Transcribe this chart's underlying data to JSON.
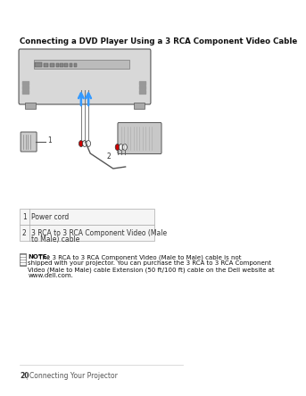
{
  "bg_color": "#ffffff",
  "title": "Connecting a DVD Player Using a 3 RCA Component Video Cable",
  "table_rows": [
    [
      "1",
      "Power cord"
    ],
    [
      "2",
      "3 RCA to 3 RCA Component Video (Male\nto Male) cable"
    ]
  ],
  "note_lines": [
    [
      "bold",
      "NOTE:"
    ],
    [
      "normal",
      " The 3 RCA to 3 RCA Component Video (Male to Male) cable is not"
    ],
    [
      "normal",
      "shipped with your projector. You can purchase the 3 RCA to 3 RCA Component"
    ],
    [
      "normal",
      "Video (Male to Male) cable Extension (50 ft/100 ft) cable on the Dell website at"
    ],
    [
      "normal",
      "www.dell.com."
    ]
  ],
  "footer_page": "20",
  "footer_sep": "|",
  "footer_text": "Connecting Your Projector",
  "arrow_color": "#3399ff",
  "projector_color": "#d8d8d8",
  "dvd_color": "#c8c8c8",
  "cable_color": "#808080",
  "connector_color": "#a0a0a0"
}
